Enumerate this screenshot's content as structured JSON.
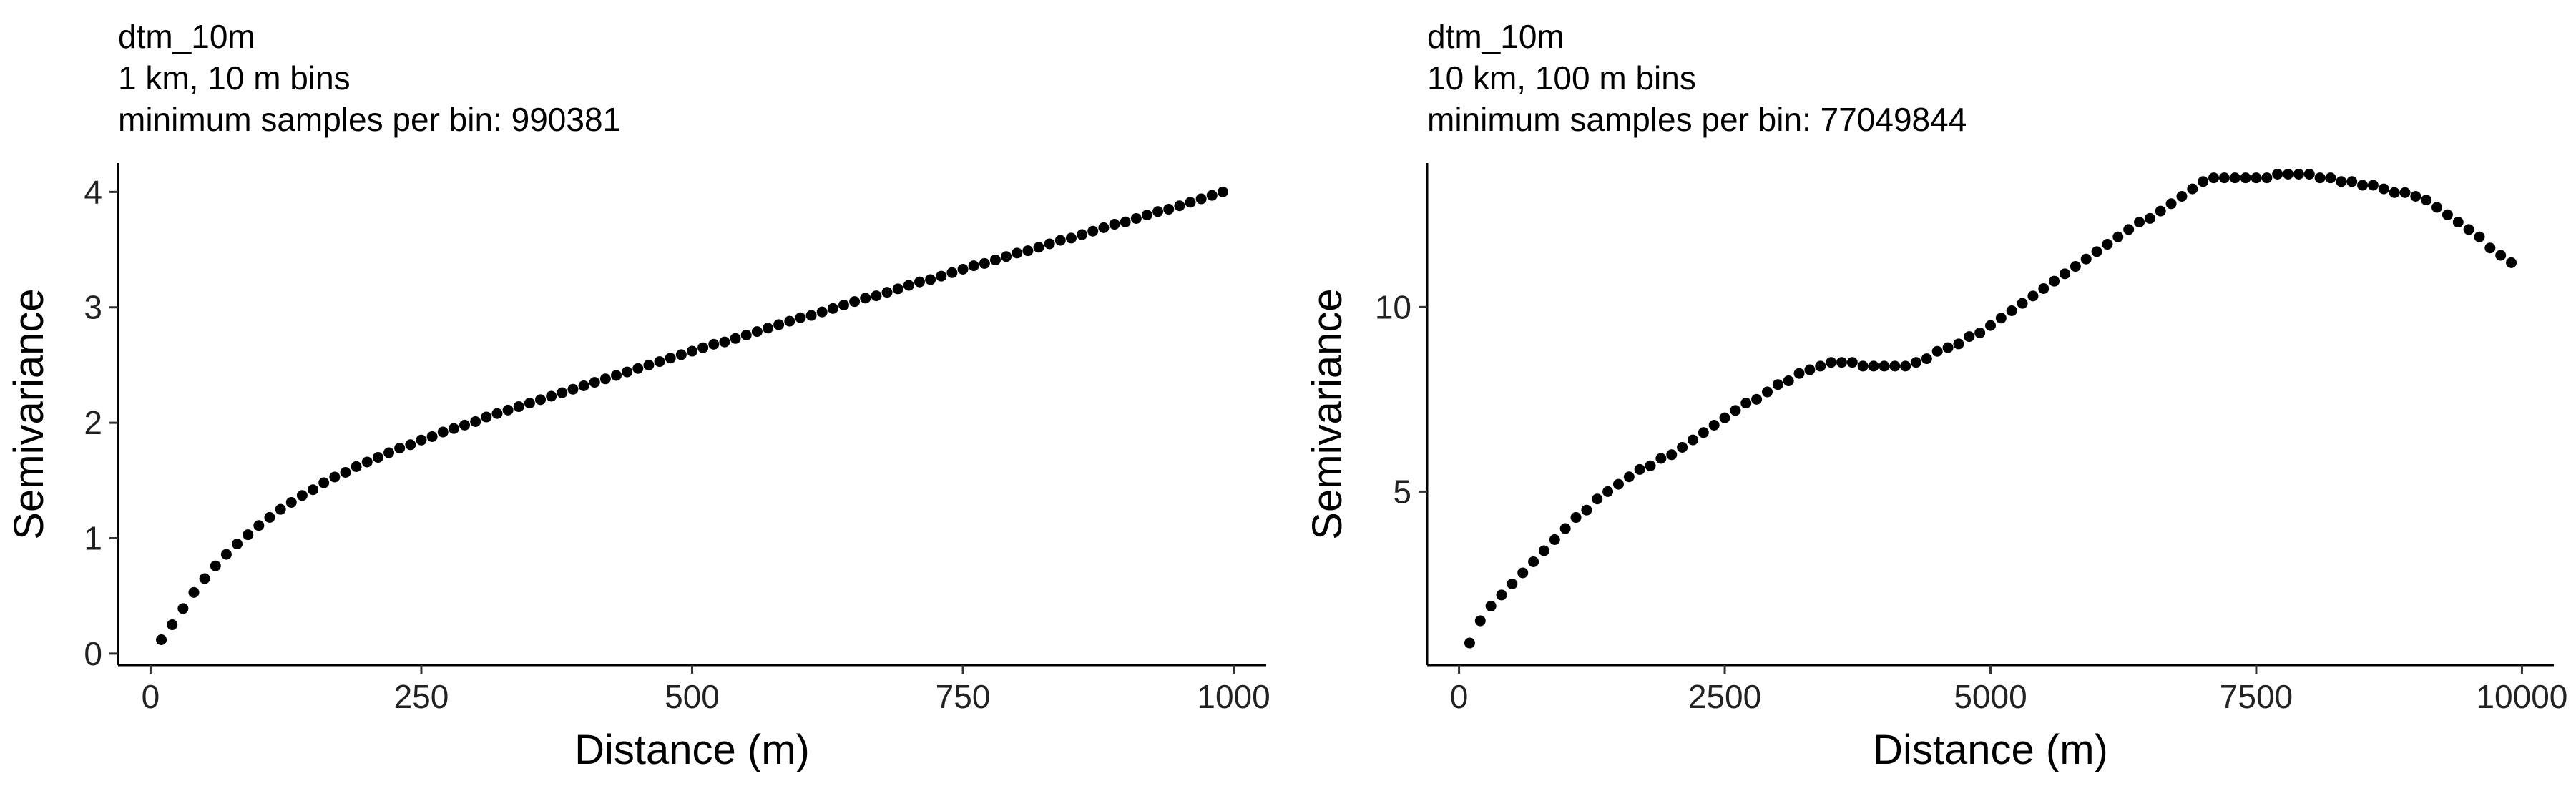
{
  "chart_data": [
    {
      "type": "scatter",
      "title": "dtm_10m",
      "subtitle": [
        "1 km, 10 m bins",
        "minimum samples per bin: 990381"
      ],
      "xlabel": "Distance (m)",
      "ylabel": "Semivariance",
      "xlim": [
        -30,
        1030
      ],
      "ylim": [
        -0.1,
        4.25
      ],
      "xticks": [
        0,
        250,
        500,
        750,
        1000
      ],
      "xtick_labels": [
        "0",
        "250",
        "500",
        "750",
        "1000"
      ],
      "yticks": [
        0,
        1,
        2,
        3,
        4
      ],
      "ytick_labels": [
        "0",
        "1",
        "2",
        "3",
        "4"
      ],
      "grid": false,
      "legend": false,
      "point_color": "#000000",
      "x": [
        10,
        20,
        30,
        40,
        50,
        60,
        70,
        80,
        90,
        100,
        110,
        120,
        130,
        140,
        150,
        160,
        170,
        180,
        190,
        200,
        210,
        220,
        230,
        240,
        250,
        260,
        270,
        280,
        290,
        300,
        310,
        320,
        330,
        340,
        350,
        360,
        370,
        380,
        390,
        400,
        410,
        420,
        430,
        440,
        450,
        460,
        470,
        480,
        490,
        500,
        510,
        520,
        530,
        540,
        550,
        560,
        570,
        580,
        590,
        600,
        610,
        620,
        630,
        640,
        650,
        660,
        670,
        680,
        690,
        700,
        710,
        720,
        730,
        740,
        750,
        760,
        770,
        780,
        790,
        800,
        810,
        820,
        830,
        840,
        850,
        860,
        870,
        880,
        890,
        900,
        910,
        920,
        930,
        940,
        950,
        960,
        970,
        980,
        990
      ],
      "y": [
        0.12,
        0.25,
        0.39,
        0.53,
        0.65,
        0.76,
        0.86,
        0.95,
        1.03,
        1.11,
        1.18,
        1.25,
        1.31,
        1.37,
        1.42,
        1.48,
        1.53,
        1.57,
        1.62,
        1.66,
        1.7,
        1.74,
        1.78,
        1.81,
        1.85,
        1.88,
        1.92,
        1.95,
        1.98,
        2.01,
        2.05,
        2.08,
        2.11,
        2.14,
        2.17,
        2.2,
        2.23,
        2.26,
        2.29,
        2.32,
        2.35,
        2.38,
        2.41,
        2.44,
        2.47,
        2.5,
        2.53,
        2.56,
        2.59,
        2.62,
        2.65,
        2.68,
        2.7,
        2.73,
        2.76,
        2.79,
        2.82,
        2.85,
        2.88,
        2.91,
        2.93,
        2.96,
        2.99,
        3.02,
        3.05,
        3.08,
        3.1,
        3.13,
        3.16,
        3.19,
        3.22,
        3.24,
        3.27,
        3.3,
        3.33,
        3.36,
        3.38,
        3.41,
        3.44,
        3.47,
        3.49,
        3.52,
        3.55,
        3.58,
        3.6,
        3.63,
        3.66,
        3.69,
        3.72,
        3.74,
        3.77,
        3.8,
        3.83,
        3.85,
        3.88,
        3.91,
        3.94,
        3.97,
        4.0
      ]
    },
    {
      "type": "scatter",
      "title": "dtm_10m",
      "subtitle": [
        "10 km, 100 m bins",
        "minimum samples per bin: 77049844"
      ],
      "xlabel": "Distance (m)",
      "ylabel": "Semivariance",
      "xlim": [
        -300,
        10300
      ],
      "ylim": [
        0.3,
        13.9
      ],
      "xticks": [
        0,
        2500,
        5000,
        7500,
        10000
      ],
      "xtick_labels": [
        "0",
        "2500",
        "5000",
        "7500",
        "10000"
      ],
      "yticks": [
        5,
        10
      ],
      "ytick_labels": [
        "5",
        "10"
      ],
      "grid": false,
      "legend": false,
      "point_color": "#000000",
      "x": [
        100,
        200,
        300,
        400,
        500,
        600,
        700,
        800,
        900,
        1000,
        1100,
        1200,
        1300,
        1400,
        1500,
        1600,
        1700,
        1800,
        1900,
        2000,
        2100,
        2200,
        2300,
        2400,
        2500,
        2600,
        2700,
        2800,
        2900,
        3000,
        3100,
        3200,
        3300,
        3400,
        3500,
        3600,
        3700,
        3800,
        3900,
        4000,
        4100,
        4200,
        4300,
        4400,
        4500,
        4600,
        4700,
        4800,
        4900,
        5000,
        5100,
        5200,
        5300,
        5400,
        5500,
        5600,
        5700,
        5800,
        5900,
        6000,
        6100,
        6200,
        6300,
        6400,
        6500,
        6600,
        6700,
        6800,
        6900,
        7000,
        7100,
        7200,
        7300,
        7400,
        7500,
        7600,
        7700,
        7800,
        7900,
        8000,
        8100,
        8200,
        8300,
        8400,
        8500,
        8600,
        8700,
        8800,
        8900,
        9000,
        9100,
        9200,
        9300,
        9400,
        9500,
        9600,
        9700,
        9800,
        9900
      ],
      "y": [
        0.9,
        1.5,
        1.9,
        2.2,
        2.5,
        2.8,
        3.1,
        3.4,
        3.7,
        4.0,
        4.3,
        4.5,
        4.8,
        5.0,
        5.2,
        5.4,
        5.6,
        5.7,
        5.9,
        6.0,
        6.2,
        6.4,
        6.6,
        6.8,
        7.0,
        7.2,
        7.4,
        7.5,
        7.7,
        7.9,
        8.0,
        8.2,
        8.3,
        8.4,
        8.5,
        8.5,
        8.5,
        8.4,
        8.4,
        8.4,
        8.4,
        8.4,
        8.5,
        8.6,
        8.8,
        8.9,
        9.0,
        9.2,
        9.3,
        9.5,
        9.7,
        9.9,
        10.1,
        10.3,
        10.5,
        10.7,
        10.9,
        11.1,
        11.3,
        11.5,
        11.7,
        11.9,
        12.1,
        12.3,
        12.4,
        12.6,
        12.8,
        13.0,
        13.2,
        13.4,
        13.5,
        13.5,
        13.5,
        13.5,
        13.5,
        13.5,
        13.6,
        13.6,
        13.6,
        13.6,
        13.5,
        13.5,
        13.4,
        13.4,
        13.3,
        13.3,
        13.2,
        13.1,
        13.1,
        13.0,
        12.9,
        12.7,
        12.5,
        12.3,
        12.1,
        11.9,
        11.6,
        11.4,
        11.2
      ]
    }
  ]
}
